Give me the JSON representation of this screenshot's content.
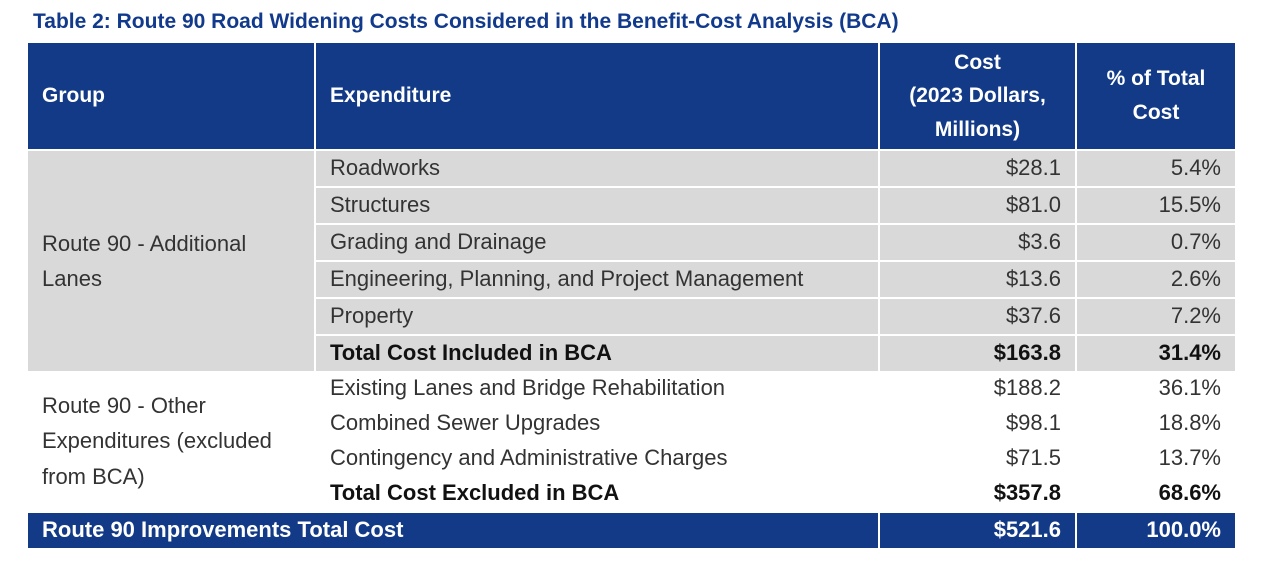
{
  "title": "Table 2: Route 90 Road Widening Costs Considered in the Benefit-Cost Analysis (BCA)",
  "headers": {
    "group": "Group",
    "expenditure": "Expenditure",
    "cost_line1": "Cost",
    "cost_line2": "(2023 Dollars,",
    "cost_line3": "Millions)",
    "pct_line1": "% of Total",
    "pct_line2": "Cost"
  },
  "groups": [
    {
      "name": "Route 90 - Additional Lanes",
      "rows": [
        {
          "expenditure": "Roadworks",
          "cost": "$28.1",
          "pct": "5.4%"
        },
        {
          "expenditure": "Structures",
          "cost": "$81.0",
          "pct": "15.5%"
        },
        {
          "expenditure": "Grading and Drainage",
          "cost": "$3.6",
          "pct": "0.7%"
        },
        {
          "expenditure": "Engineering, Planning, and Project Management",
          "cost": "$13.6",
          "pct": "2.6%"
        },
        {
          "expenditure": "Property",
          "cost": "$37.6",
          "pct": "7.2%"
        }
      ],
      "total": {
        "expenditure": "Total Cost Included in BCA",
        "cost": "$163.8",
        "pct": "31.4%"
      }
    },
    {
      "name": "Route 90 - Other Expenditures (excluded from BCA)",
      "rows": [
        {
          "expenditure": "Existing Lanes and Bridge Rehabilitation",
          "cost": "$188.2",
          "pct": "36.1%"
        },
        {
          "expenditure": "Combined Sewer Upgrades",
          "cost": "$98.1",
          "pct": "18.8%"
        },
        {
          "expenditure": "Contingency and Administrative Charges",
          "cost": "$71.5",
          "pct": "13.7%"
        }
      ],
      "total": {
        "expenditure": "Total Cost Excluded in BCA",
        "cost": "$357.8",
        "pct": "68.6%"
      }
    }
  ],
  "grand_total": {
    "label": "Route 90 Improvements Total Cost",
    "cost": "$521.6",
    "pct": "100.0%"
  },
  "colors": {
    "header_bg": "#133a87",
    "title": "#123a8c",
    "shaded_row": "#d9d9d9"
  }
}
